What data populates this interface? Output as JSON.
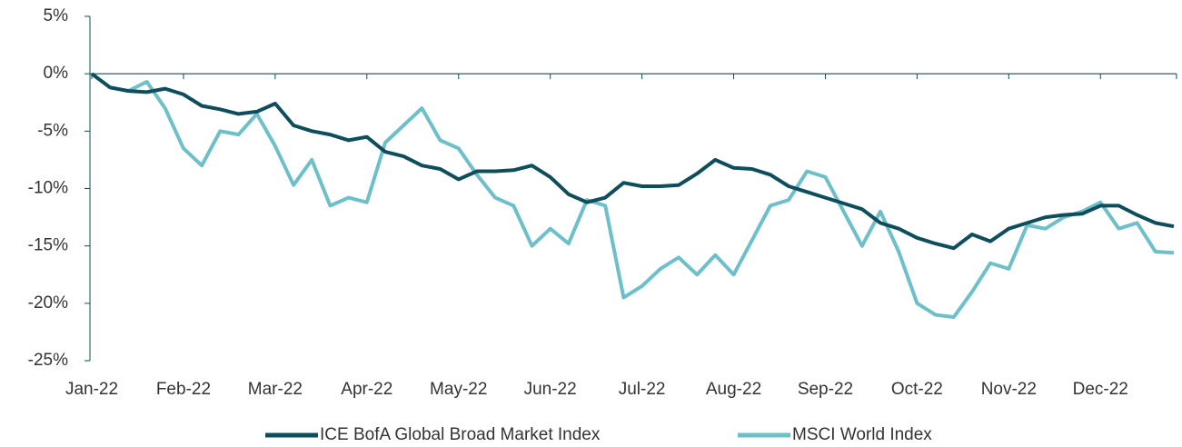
{
  "chart_data": {
    "type": "line",
    "categories": [
      "Jan-22",
      null,
      null,
      null,
      null,
      "Feb-22",
      null,
      null,
      null,
      null,
      "Mar-22",
      null,
      null,
      null,
      null,
      "Apr-22",
      null,
      null,
      null,
      null,
      "May-22",
      null,
      null,
      null,
      null,
      "Jun-22",
      null,
      null,
      null,
      null,
      "Jul-22",
      null,
      null,
      null,
      null,
      "Aug-22",
      null,
      null,
      null,
      null,
      "Sep-22",
      null,
      null,
      null,
      null,
      "Oct-22",
      null,
      null,
      null,
      null,
      "Nov-22",
      null,
      null,
      null,
      null,
      "Dec-22",
      null,
      null,
      null,
      null
    ],
    "series": [
      {
        "name": "ICE BofA Global Broad Market Index",
        "color": "#0e4d5c",
        "values": [
          0,
          -1.2,
          -1.5,
          -1.6,
          -1.3,
          -1.8,
          -2.8,
          -3.1,
          -3.5,
          -3.3,
          -2.6,
          -4.5,
          -5.0,
          -5.3,
          -5.8,
          -5.5,
          -6.8,
          -7.2,
          -8.0,
          -8.3,
          -9.2,
          -8.5,
          -8.5,
          -8.4,
          -8.0,
          -9.0,
          -10.5,
          -11.2,
          -10.8,
          -9.5,
          -9.8,
          -9.8,
          -9.7,
          -8.7,
          -7.5,
          -8.2,
          -8.3,
          -8.8,
          -9.8,
          -10.3,
          -10.8,
          -11.3,
          -11.8,
          -13.0,
          -13.5,
          -14.3,
          -14.8,
          -15.2,
          -14.0,
          -14.6,
          -13.5,
          -13.0,
          -12.5,
          -12.3,
          -12.2,
          -11.5,
          -11.5,
          -12.3,
          -13.0,
          -13.3
        ]
      },
      {
        "name": "MSCI World Index",
        "color": "#6dbfc9",
        "values": [
          0,
          -1.2,
          -1.5,
          -0.7,
          -3.0,
          -6.5,
          -8.0,
          -5.0,
          -5.3,
          -3.5,
          -6.3,
          -9.7,
          -7.5,
          -11.5,
          -10.8,
          -11.2,
          -6.0,
          -4.5,
          -3.0,
          -5.8,
          -6.5,
          -8.8,
          -10.8,
          -11.5,
          -15.0,
          -13.5,
          -14.8,
          -11.0,
          -11.5,
          -19.5,
          -18.5,
          -17.0,
          -16.0,
          -17.5,
          -15.8,
          -17.5,
          -14.5,
          -11.5,
          -11.0,
          -8.5,
          -9.0,
          -12.0,
          -15.0,
          -12.0,
          -15.5,
          -20.0,
          -21.0,
          -21.2,
          -19.0,
          -16.5,
          -17.0,
          -13.2,
          -13.5,
          -12.5,
          -12.0,
          -11.2,
          -13.5,
          -13.0,
          -15.5,
          -15.6
        ]
      }
    ],
    "ylim": [
      -25,
      5
    ],
    "yticks": [
      {
        "value": -25,
        "label": "-25%"
      },
      {
        "value": -20,
        "label": "-20%"
      },
      {
        "value": -15,
        "label": "-15%"
      },
      {
        "value": -10,
        "label": "-10%"
      },
      {
        "value": -5,
        "label": "-5%"
      },
      {
        "value": 0,
        "label": "0%"
      },
      {
        "value": 5,
        "label": "5%"
      }
    ],
    "legend": "bottom",
    "grid": false
  }
}
